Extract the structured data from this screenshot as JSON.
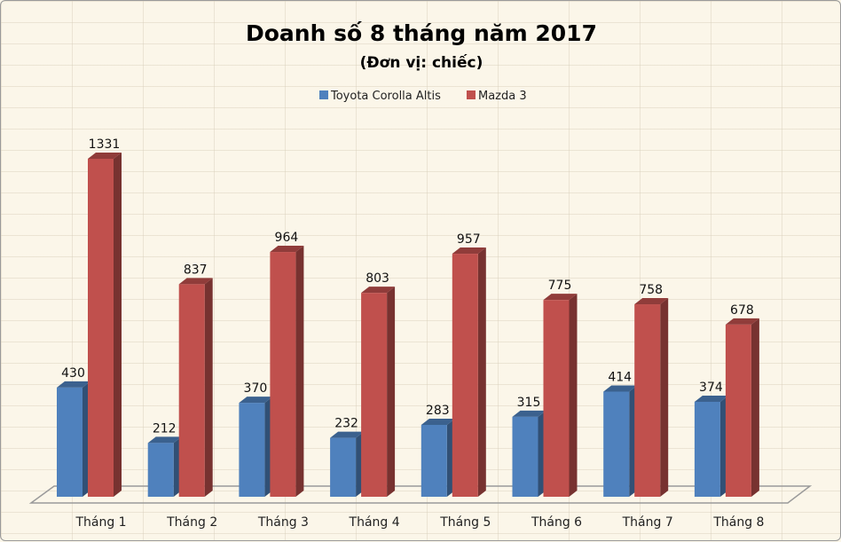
{
  "chart_data": {
    "type": "bar",
    "title": "Doanh số 8 tháng năm 2017",
    "subtitle": "(Đơn vị: chiếc)",
    "categories": [
      "Tháng 1",
      "Tháng 2",
      "Tháng 3",
      "Tháng 4",
      "Tháng 5",
      "Tháng 6",
      "Tháng 7",
      "Tháng 8"
    ],
    "series": [
      {
        "name": "Toyota Corolla Altis",
        "color": "#4f81bd",
        "values": [
          430,
          212,
          370,
          232,
          283,
          315,
          414,
          374
        ]
      },
      {
        "name": "Mazda 3",
        "color": "#c0504d",
        "values": [
          1331,
          837,
          964,
          803,
          957,
          775,
          758,
          678
        ]
      }
    ],
    "ylim": [
      0,
      1331
    ],
    "style": "3d-clustered-column",
    "legend": "top",
    "data_labels": true,
    "grid": false
  }
}
